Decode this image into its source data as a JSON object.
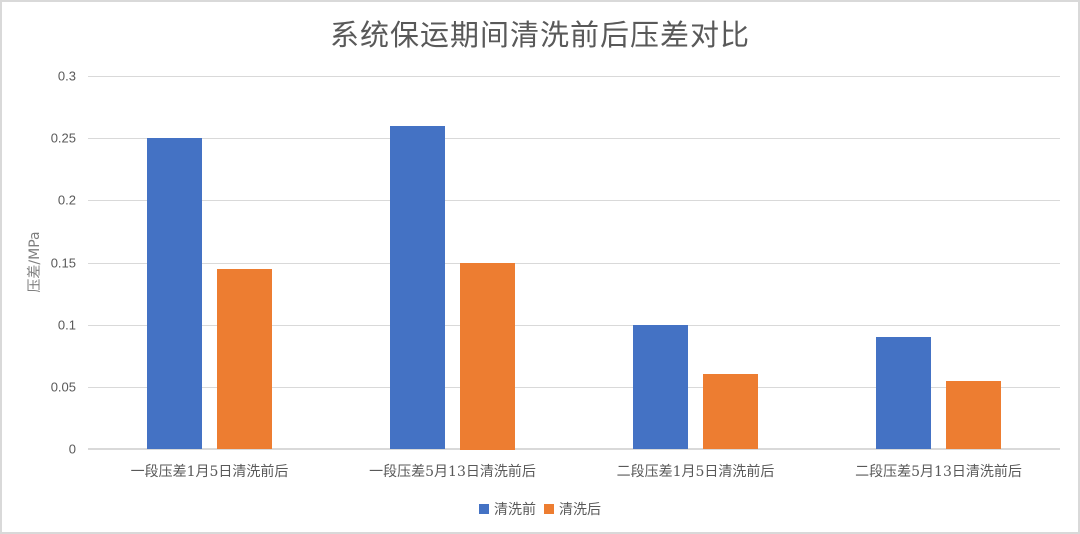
{
  "chart_data": {
    "type": "bar",
    "title": "系统保运期间清洗前后压差对比",
    "xlabel": "",
    "ylabel": "压差/MPa",
    "ylim": [
      0,
      0.3
    ],
    "yticks": [
      "0",
      "0.05",
      "0.1",
      "0.15",
      "0.2",
      "0.25",
      "0.3"
    ],
    "grid": true,
    "legend_position": "bottom",
    "categories": [
      "一段压差1月5日清洗前后",
      "一段压差5月13日清洗前后",
      "二段压差1月5日清洗前后",
      "二段压差5月13日清洗前后"
    ],
    "series": [
      {
        "name": "清洗前",
        "color": "#4472c4",
        "values": [
          0.25,
          0.26,
          0.1,
          0.09
        ]
      },
      {
        "name": "清洗后",
        "color": "#ed7d31",
        "values": [
          0.145,
          0.15,
          0.06,
          0.055
        ]
      }
    ]
  }
}
